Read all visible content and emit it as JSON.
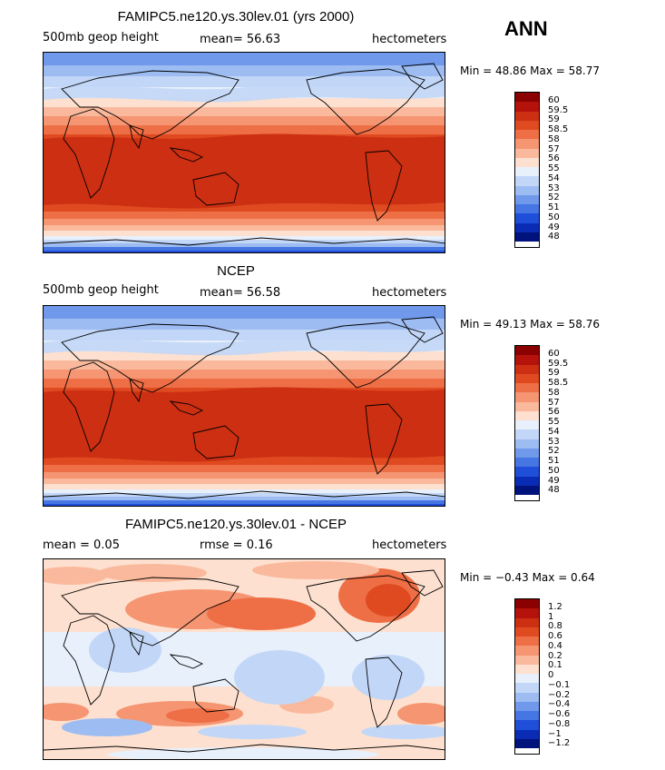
{
  "season": "ANN",
  "panels": [
    {
      "title": "FAMIPC5.ne120.ys.30lev.01 (yrs 2000)",
      "left": "500mb geop height",
      "middle": "mean=   56.63",
      "right": "hectometers",
      "minmax": "Min =  48.86 Max =  58.77",
      "mode": "abs"
    },
    {
      "title": "NCEP",
      "left": "500mb geop height",
      "middle": "mean=   56.58",
      "right": "hectometers",
      "minmax": "Min =  49.13 Max =  58.76",
      "mode": "abs"
    },
    {
      "title": "FAMIPC5.ne120.ys.30lev.01 - NCEP",
      "left": "mean =     0.05",
      "middle": "rmse =     0.16",
      "right": "hectometers",
      "minmax": "Min =  −0.43 Max =    0.64",
      "mode": "diff"
    }
  ],
  "colorbar_abs": {
    "labels": [
      "60",
      "59.5",
      "59",
      "58.5",
      "58",
      "57",
      "56",
      "55",
      "54",
      "53",
      "52",
      "51",
      "50",
      "49",
      "48"
    ],
    "colors": [
      "#8b0000",
      "#b4120a",
      "#cc2f12",
      "#e04a20",
      "#ee6e45",
      "#f59572",
      "#fab99c",
      "#fde0cf",
      "#e8f0fb",
      "#c2d7f7",
      "#9dbcf2",
      "#7099ec",
      "#4576e4",
      "#1f4fd9",
      "#0a2cb5",
      "#00137d"
    ]
  },
  "colorbar_diff": {
    "labels": [
      "1.2",
      "1",
      "0.8",
      "0.6",
      "0.4",
      "0.2",
      "0.1",
      "0",
      "−0.1",
      "−0.2",
      "−0.4",
      "−0.6",
      "−0.8",
      "−1",
      "−1.2"
    ],
    "colors": [
      "#8b0000",
      "#b4120a",
      "#cc2f12",
      "#e04a20",
      "#ee6e45",
      "#f59572",
      "#fab99c",
      "#fde0cf",
      "#e8f0fb",
      "#c2d7f7",
      "#9dbcf2",
      "#7099ec",
      "#4576e4",
      "#1f4fd9",
      "#0a2cb5",
      "#00137d"
    ]
  }
}
